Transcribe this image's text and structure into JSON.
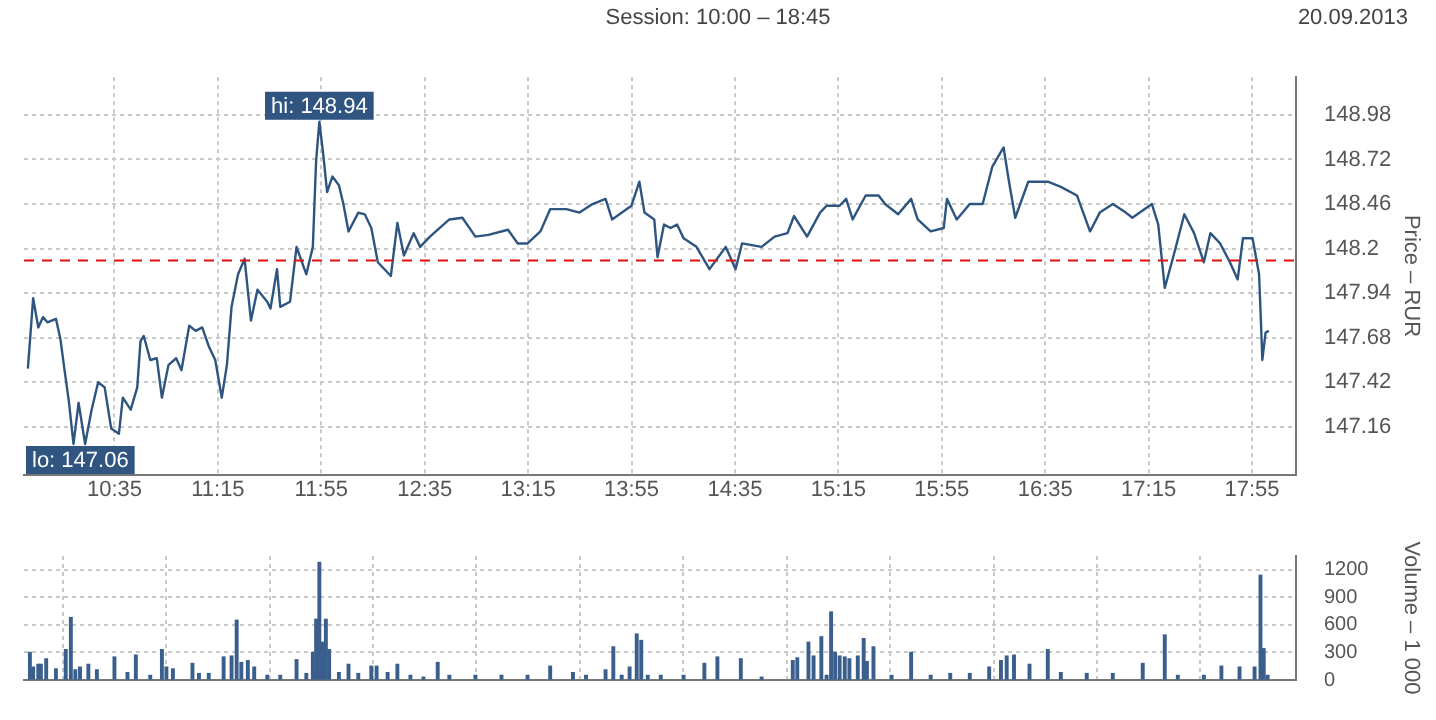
{
  "chart_data": [
    {
      "type": "line",
      "subtitle": "Session: 10:00 – 18:45",
      "ylabel": "Price – RUR",
      "annotations": [
        "20.09.2013",
        {
          "text": "hi: 148.94",
          "x": 11.904,
          "y": 148.94
        },
        {
          "text": "lo: 147.06",
          "x": 10.319,
          "y": 147.06
        }
      ],
      "xlim": [
        10.0,
        18.2
      ],
      "xticks": [
        {
          "value": 10.5833,
          "label": "10:35"
        },
        {
          "value": 11.25,
          "label": "11:15"
        },
        {
          "value": 11.9167,
          "label": "11:55"
        },
        {
          "value": 12.5833,
          "label": "12:35"
        },
        {
          "value": 13.25,
          "label": "13:15"
        },
        {
          "value": 13.9167,
          "label": "13:55"
        },
        {
          "value": 14.5833,
          "label": "14:35"
        },
        {
          "value": 15.25,
          "label": "15:15"
        },
        {
          "value": 15.9167,
          "label": "15:55"
        },
        {
          "value": 16.5833,
          "label": "16:35"
        },
        {
          "value": 17.25,
          "label": "17:15"
        },
        {
          "value": 17.9167,
          "label": "17:55"
        }
      ],
      "ylim": [
        146.88,
        149.2
      ],
      "yticks": [
        147.16,
        147.42,
        147.68,
        147.94,
        {
          "value": 148.2,
          "label": "148.2"
        },
        148.46,
        148.72,
        148.98
      ],
      "grid": true,
      "legend": false,
      "marker": "none",
      "line_style": "solid",
      "ref_lines": [
        {
          "axis": "y",
          "value": 148.13,
          "color": "#e01010",
          "line_style": "dashed"
        }
      ],
      "series": [
        {
          "color": "#2e5580",
          "x": [
            10.025,
            10.059,
            10.092,
            10.122,
            10.151,
            10.206,
            10.235,
            10.26,
            10.289,
            10.319,
            10.352,
            10.394,
            10.436,
            10.478,
            10.52,
            10.562,
            10.612,
            10.637,
            10.688,
            10.73,
            10.751,
            10.772,
            10.814,
            10.856,
            10.889,
            10.931,
            10.981,
            11.015,
            11.065,
            11.107,
            11.149,
            11.191,
            11.233,
            11.275,
            11.308,
            11.338,
            11.38,
            11.422,
            11.463,
            11.505,
            11.568,
            11.589,
            11.631,
            11.652,
            11.715,
            11.757,
            11.82,
            11.862,
            11.883,
            11.904,
            11.929,
            11.954,
            11.988,
            12.03,
            12.059,
            12.092,
            12.155,
            12.197,
            12.239,
            12.281,
            12.365,
            12.407,
            12.449,
            12.512,
            12.554,
            12.617,
            12.742,
            12.826,
            12.91,
            12.994,
            13.12,
            13.183,
            13.246,
            13.329,
            13.392,
            13.497,
            13.581,
            13.665,
            13.749,
            13.791,
            13.916,
            13.967,
            14.0,
            14.063,
            14.084,
            14.126,
            14.168,
            14.21,
            14.252,
            14.335,
            14.419,
            14.524,
            14.587,
            14.629,
            14.755,
            14.839,
            14.922,
            14.964,
            15.048,
            15.132,
            15.174,
            15.258,
            15.3,
            15.342,
            15.426,
            15.509,
            15.551,
            15.635,
            15.719,
            15.761,
            15.845,
            15.929,
            15.95,
            16.013,
            16.097,
            16.18,
            16.243,
            16.315,
            16.348,
            16.39,
            16.474,
            16.6,
            16.684,
            16.788,
            16.872,
            16.935,
            17.019,
            17.103,
            17.145,
            17.271,
            17.312,
            17.354,
            17.417,
            17.48,
            17.543,
            17.606,
            17.648,
            17.711,
            17.774,
            17.824,
            17.858,
            17.92,
            17.962,
            17.975,
            17.983,
            18.004,
            18.025
          ],
          "values": [
            147.5,
            147.91,
            147.74,
            147.8,
            147.77,
            147.79,
            147.67,
            147.5,
            147.31,
            147.06,
            147.3,
            147.06,
            147.26,
            147.42,
            147.39,
            147.15,
            147.12,
            147.33,
            147.26,
            147.39,
            147.66,
            147.69,
            147.55,
            147.56,
            147.33,
            147.52,
            147.56,
            147.49,
            147.75,
            147.72,
            147.74,
            147.63,
            147.55,
            147.33,
            147.52,
            147.86,
            148.05,
            148.14,
            147.78,
            147.96,
            147.89,
            147.85,
            148.08,
            147.86,
            147.89,
            148.21,
            148.05,
            148.21,
            148.71,
            148.94,
            148.75,
            148.53,
            148.62,
            148.57,
            148.46,
            148.3,
            148.41,
            148.4,
            148.32,
            148.12,
            148.04,
            148.35,
            148.16,
            148.29,
            148.21,
            148.27,
            148.37,
            148.38,
            148.27,
            148.28,
            148.31,
            148.23,
            148.23,
            148.3,
            148.43,
            148.43,
            148.41,
            148.46,
            148.49,
            148.37,
            148.45,
            148.59,
            148.41,
            148.37,
            148.15,
            148.34,
            148.32,
            148.34,
            148.26,
            148.21,
            148.08,
            148.21,
            148.08,
            148.23,
            148.21,
            148.27,
            148.29,
            148.39,
            148.27,
            148.41,
            148.45,
            148.45,
            148.49,
            148.37,
            148.51,
            148.51,
            148.46,
            148.4,
            148.49,
            148.37,
            148.3,
            148.32,
            148.49,
            148.37,
            148.46,
            148.46,
            148.68,
            148.79,
            148.6,
            148.38,
            148.59,
            148.59,
            148.56,
            148.51,
            148.3,
            148.41,
            148.46,
            148.41,
            148.38,
            148.46,
            148.34,
            147.97,
            148.18,
            148.4,
            148.29,
            148.12,
            148.29,
            148.23,
            148.12,
            148.02,
            148.26,
            148.26,
            148.05,
            147.75,
            147.55,
            147.71,
            147.72
          ]
        }
      ]
    },
    {
      "type": "bar",
      "ylabel": "Volume – 1 000",
      "tick_labels": "y",
      "grid": true,
      "legend": false,
      "xlim": [
        10.0,
        18.2
      ],
      "xticks": [
        10.5833,
        11.25,
        11.9167,
        12.5833,
        13.25,
        13.9167,
        14.5833,
        15.25,
        15.9167,
        16.5833,
        17.25,
        17.9167
      ],
      "ylim": [
        0,
        1350
      ],
      "yticks": [
        0,
        300,
        600,
        900,
        1200
      ],
      "series": [
        {
          "color": "#3a5f8c",
          "x": [
            10.038,
            10.059,
            10.092,
            10.109,
            10.143,
            10.206,
            10.269,
            10.302,
            10.331,
            10.361,
            10.415,
            10.47,
            10.583,
            10.667,
            10.721,
            10.814,
            10.889,
            10.918,
            10.96,
            11.086,
            11.128,
            11.191,
            11.287,
            11.338,
            11.371,
            11.401,
            11.443,
            11.484,
            11.568,
            11.652,
            11.757,
            11.82,
            11.862,
            11.883,
            11.904,
            11.925,
            11.946,
            11.967,
            12.03,
            12.092,
            12.155,
            12.239,
            12.273,
            12.344,
            12.407,
            12.491,
            12.575,
            12.667,
            12.742,
            12.91,
            13.078,
            13.246,
            13.392,
            13.539,
            13.623,
            13.749,
            13.799,
            13.853,
            13.904,
            13.95,
            13.979,
            14.021,
            14.105,
            14.252,
            14.386,
            14.47,
            14.621,
            14.755,
            14.956,
            14.985,
            15.057,
            15.09,
            15.14,
            15.174,
            15.203,
            15.229,
            15.258,
            15.291,
            15.321,
            15.375,
            15.413,
            15.434,
            15.476,
            15.593,
            15.719,
            15.845,
            15.971,
            16.097,
            16.222,
            16.298,
            16.335,
            16.382,
            16.482,
            16.6,
            16.684,
            16.851,
            17.019,
            17.212,
            17.354,
            17.438,
            17.606,
            17.719,
            17.836,
            17.933,
            17.971,
            17.992,
            18.017
          ],
          "values": [
            300,
            140,
            170,
            170,
            230,
            120,
            330,
            680,
            110,
            140,
            170,
            110,
            250,
            80,
            270,
            50,
            330,
            140,
            120,
            180,
            70,
            70,
            250,
            260,
            650,
            190,
            210,
            140,
            50,
            50,
            220,
            70,
            300,
            660,
            1280,
            410,
            660,
            330,
            80,
            170,
            70,
            150,
            150,
            80,
            170,
            50,
            30,
            190,
            50,
            50,
            50,
            50,
            150,
            80,
            50,
            110,
            360,
            50,
            140,
            500,
            430,
            50,
            50,
            50,
            180,
            250,
            230,
            30,
            210,
            240,
            410,
            260,
            470,
            50,
            740,
            300,
            260,
            250,
            230,
            260,
            450,
            200,
            360,
            50,
            300,
            50,
            70,
            70,
            140,
            210,
            260,
            270,
            170,
            330,
            80,
            70,
            70,
            180,
            490,
            50,
            50,
            150,
            140,
            140,
            1140,
            340,
            50
          ]
        }
      ]
    }
  ]
}
